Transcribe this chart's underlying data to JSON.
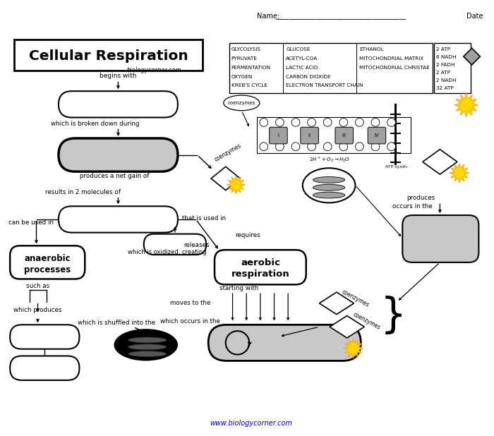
{
  "title": "Cellular Respiration",
  "subtitle": "biologycorner.com",
  "word_bank_col1": [
    "GLYCOLYSIS",
    "PYRUVATE",
    "FERMENTATION",
    "OXYGEN",
    "KREB'S CYCLE"
  ],
  "word_bank_col2": [
    "GLUCOSE",
    "ACETYL-COA",
    "LACTIC ACID",
    "CARBON DIOXIDE",
    "ELECTRON TRANSPORT CHAIN"
  ],
  "word_bank_col3": [
    "ETHANOL",
    "MITOCHONDRIAL MATRIX",
    "MITOCHONDRIAL CHRISTAE"
  ],
  "word_bank_atp": [
    "2 ATP",
    "6 NADH",
    "2 FADH",
    "2 ATP",
    "2 NADH",
    "32 ATP"
  ],
  "bg_color": "#ffffff",
  "gray_fill": "#c8c8c8",
  "dark_gray": "#a0a0a0",
  "footer_url": "www.biologycorner.com",
  "footer_color": "#0000cc",
  "burst_color": "#FFD700",
  "burst_edge": "#FFA500"
}
